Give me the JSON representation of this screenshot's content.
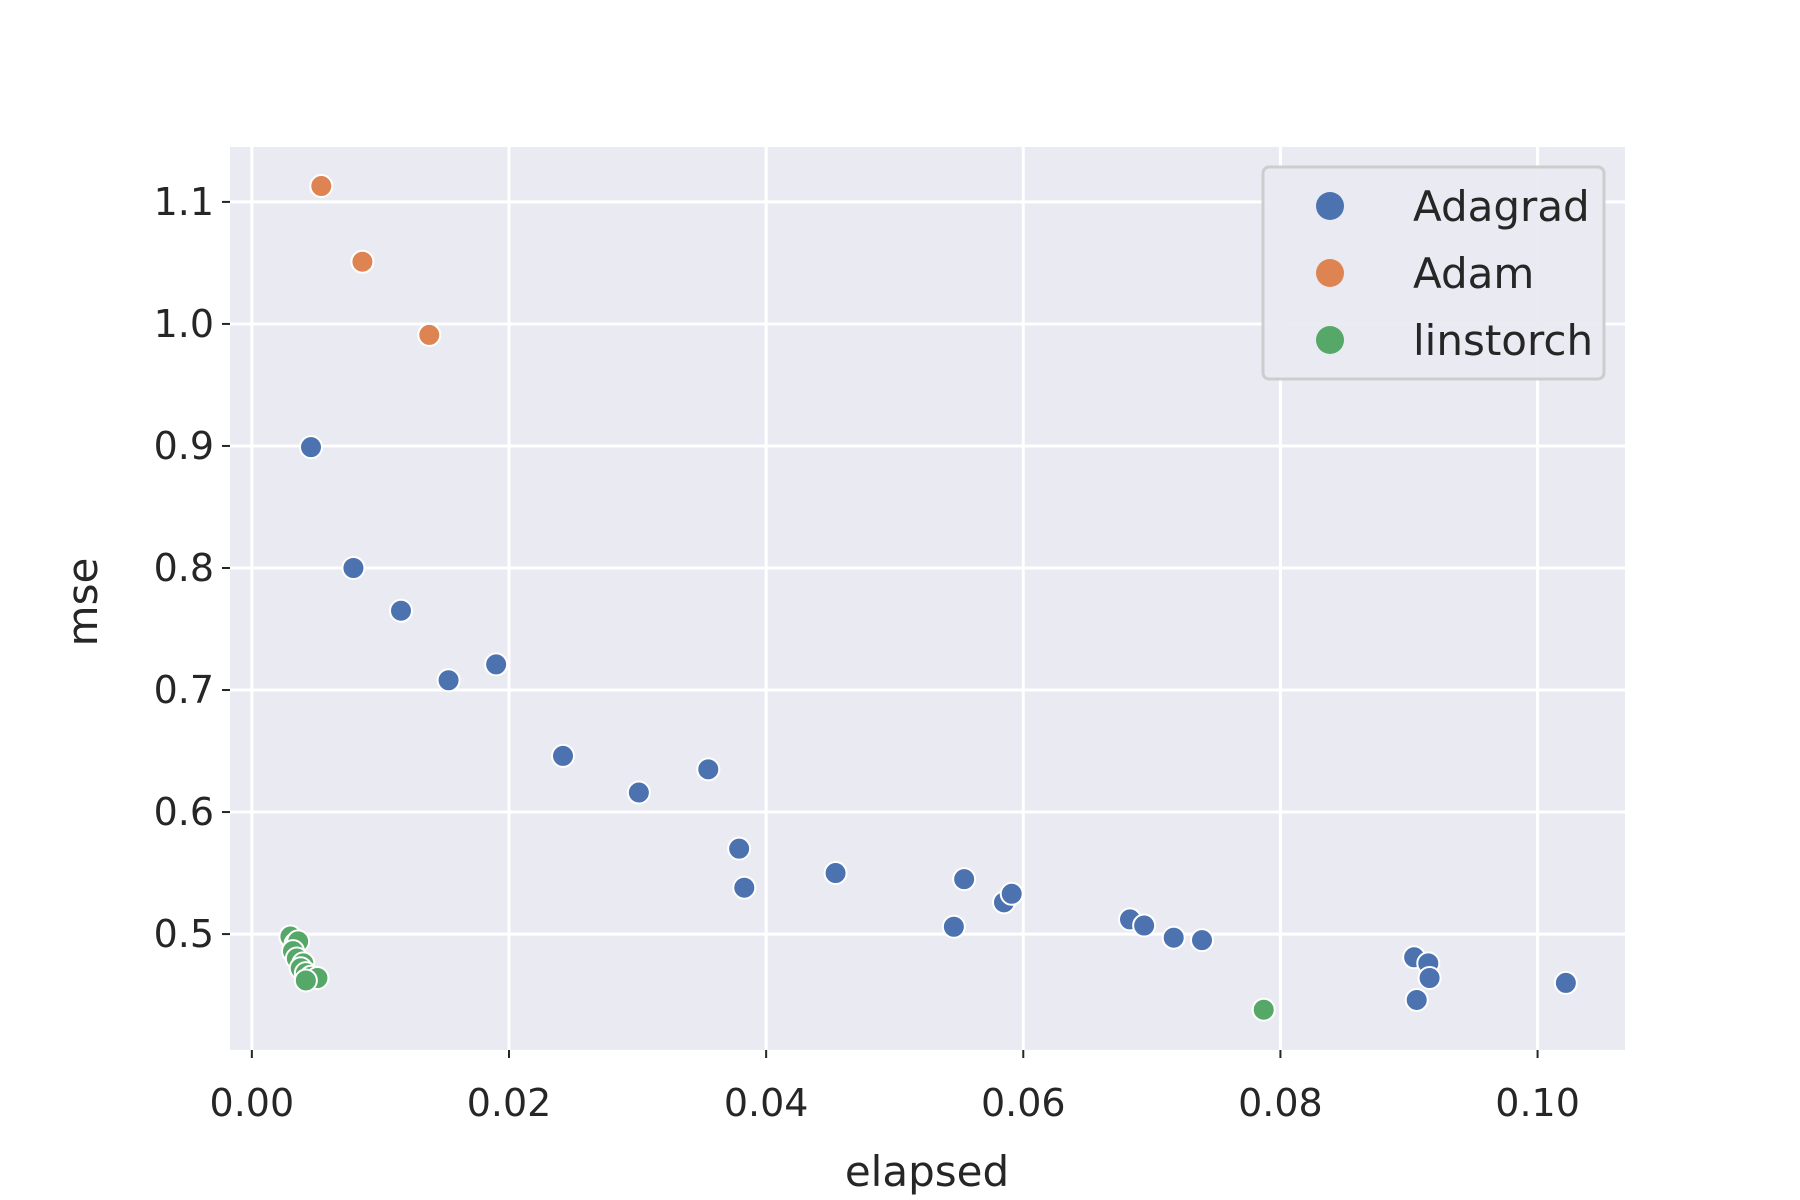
{
  "chart_data": {
    "type": "scatter",
    "title": "",
    "xlabel": "elapsed",
    "ylabel": "mse",
    "xlim": [
      -0.0017,
      0.1068
    ],
    "ylim": [
      0.405,
      1.145
    ],
    "x_ticks": [
      0.0,
      0.02,
      0.04,
      0.06,
      0.08,
      0.1
    ],
    "x_tick_labels": [
      "0.00",
      "0.02",
      "0.04",
      "0.06",
      "0.08",
      "0.10"
    ],
    "y_ticks": [
      0.5,
      0.6,
      0.7,
      0.8,
      0.9,
      1.0,
      1.1
    ],
    "y_tick_labels": [
      "0.5",
      "0.6",
      "0.7",
      "0.8",
      "0.9",
      "1.0",
      "1.1"
    ],
    "grid": true,
    "legend_position": "top-right",
    "series": [
      {
        "name": "Adagrad",
        "color": "#4c72b0",
        "points": [
          [
            0.0046,
            0.899
          ],
          [
            0.0079,
            0.8
          ],
          [
            0.0116,
            0.765
          ],
          [
            0.0153,
            0.708
          ],
          [
            0.019,
            0.721
          ],
          [
            0.0242,
            0.646
          ],
          [
            0.0301,
            0.616
          ],
          [
            0.0355,
            0.635
          ],
          [
            0.0379,
            0.57
          ],
          [
            0.0383,
            0.538
          ],
          [
            0.0454,
            0.55
          ],
          [
            0.0546,
            0.506
          ],
          [
            0.0554,
            0.545
          ],
          [
            0.0585,
            0.526
          ],
          [
            0.0591,
            0.533
          ],
          [
            0.0683,
            0.512
          ],
          [
            0.0694,
            0.507
          ],
          [
            0.0717,
            0.497
          ],
          [
            0.0739,
            0.495
          ],
          [
            0.0904,
            0.481
          ],
          [
            0.0915,
            0.476
          ],
          [
            0.0916,
            0.464
          ],
          [
            0.0906,
            0.446
          ],
          [
            0.1022,
            0.46
          ]
        ]
      },
      {
        "name": "Adam",
        "color": "#dd8452",
        "points": [
          [
            0.0054,
            1.113
          ],
          [
            0.0086,
            1.051
          ],
          [
            0.0138,
            0.991
          ]
        ]
      },
      {
        "name": "linstorch",
        "color": "#55a868",
        "points": [
          [
            0.003,
            0.498
          ],
          [
            0.0034,
            0.492
          ],
          [
            0.0036,
            0.494
          ],
          [
            0.0032,
            0.486
          ],
          [
            0.0035,
            0.48
          ],
          [
            0.004,
            0.476
          ],
          [
            0.0038,
            0.472
          ],
          [
            0.0042,
            0.468
          ],
          [
            0.0046,
            0.465
          ],
          [
            0.0051,
            0.464
          ],
          [
            0.0042,
            0.462
          ],
          [
            0.0787,
            0.438
          ]
        ]
      }
    ]
  }
}
